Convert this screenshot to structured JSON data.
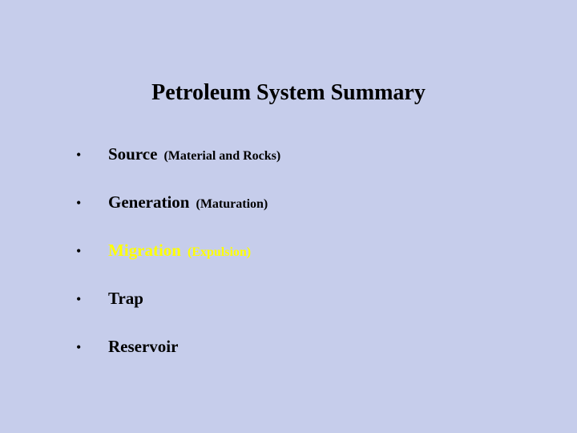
{
  "slide": {
    "title": "Petroleum System Summary",
    "background_color": "#c6cdeb",
    "title_fontsize": 28,
    "title_color": "#000000",
    "bullet_items": [
      {
        "text": "Source",
        "note": "(Material and Rocks)",
        "color": "#000000"
      },
      {
        "text": "Generation",
        "note": "(Maturation)",
        "color": "#000000"
      },
      {
        "text": "Migration",
        "note": "(Expulsion)",
        "color": "#ffff00"
      },
      {
        "text": "Trap",
        "note": "",
        "color": "#000000"
      },
      {
        "text": "Reservoir",
        "note": "",
        "color": "#000000"
      }
    ],
    "bullet_marker": "•",
    "text_fontsize": 21,
    "note_fontsize": 16,
    "item_spacing": 35
  }
}
